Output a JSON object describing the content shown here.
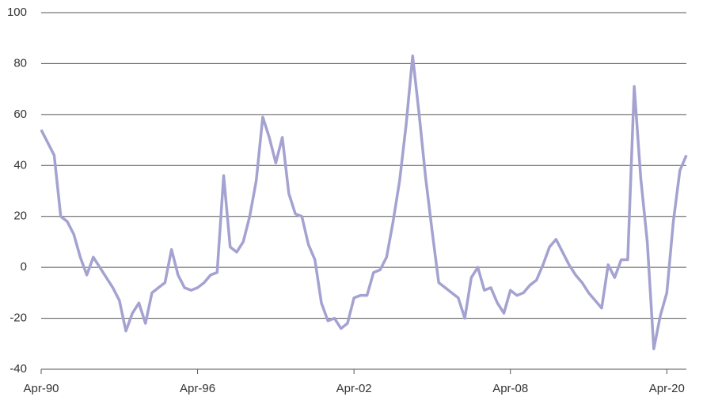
{
  "chart_data": {
    "type": "line",
    "categories": [
      "Apr-90",
      null,
      null,
      null,
      null,
      null,
      null,
      null,
      null,
      null,
      null,
      null,
      null,
      null,
      null,
      null,
      null,
      null,
      null,
      null,
      null,
      null,
      null,
      null,
      "Apr-96",
      null,
      null,
      null,
      null,
      null,
      null,
      null,
      null,
      null,
      null,
      null,
      null,
      null,
      null,
      null,
      null,
      null,
      null,
      null,
      null,
      null,
      null,
      null,
      "Apr-02",
      null,
      null,
      null,
      null,
      null,
      null,
      null,
      null,
      null,
      null,
      null,
      null,
      null,
      null,
      null,
      null,
      null,
      null,
      null,
      null,
      null,
      null,
      null,
      "Apr-08",
      null,
      null,
      null,
      null,
      null,
      null,
      null,
      null,
      null,
      null,
      null,
      null,
      null,
      null,
      null,
      null,
      null,
      null,
      null,
      null,
      null,
      null,
      null,
      "Apr-20",
      null,
      null,
      null
    ],
    "series": [
      {
        "color": "#a4a2d0",
        "values": [
          54,
          49,
          44,
          20,
          18,
          13,
          4,
          -3,
          4,
          0,
          -4,
          -8,
          -13,
          -25,
          -18,
          -14,
          -22,
          -10,
          -8,
          -6,
          7,
          -3,
          -8,
          -9,
          -8,
          -6,
          -3,
          -2,
          36,
          8,
          6,
          10,
          20,
          34,
          59,
          51,
          41,
          51,
          29,
          21,
          20,
          9,
          3,
          -14,
          -21,
          -20,
          -24,
          -22,
          -12,
          -11,
          -11,
          -2,
          -1,
          4,
          18,
          34,
          56,
          83,
          60,
          35,
          14,
          -6,
          -8,
          -10,
          -12,
          -20,
          -4,
          0,
          -9,
          -8,
          -14,
          -18,
          -9,
          -11,
          -10,
          -7,
          -5,
          1,
          8,
          11,
          6,
          1,
          -3,
          -6,
          -10,
          -13,
          -16,
          1,
          -4,
          3,
          3,
          71,
          35,
          10,
          -32,
          -19,
          -10,
          18,
          38,
          44
        ]
      }
    ],
    "ylim": [
      -40,
      100
    ],
    "yticks": [
      -40,
      -20,
      0,
      20,
      40,
      60,
      80,
      100
    ],
    "grid": true
  }
}
